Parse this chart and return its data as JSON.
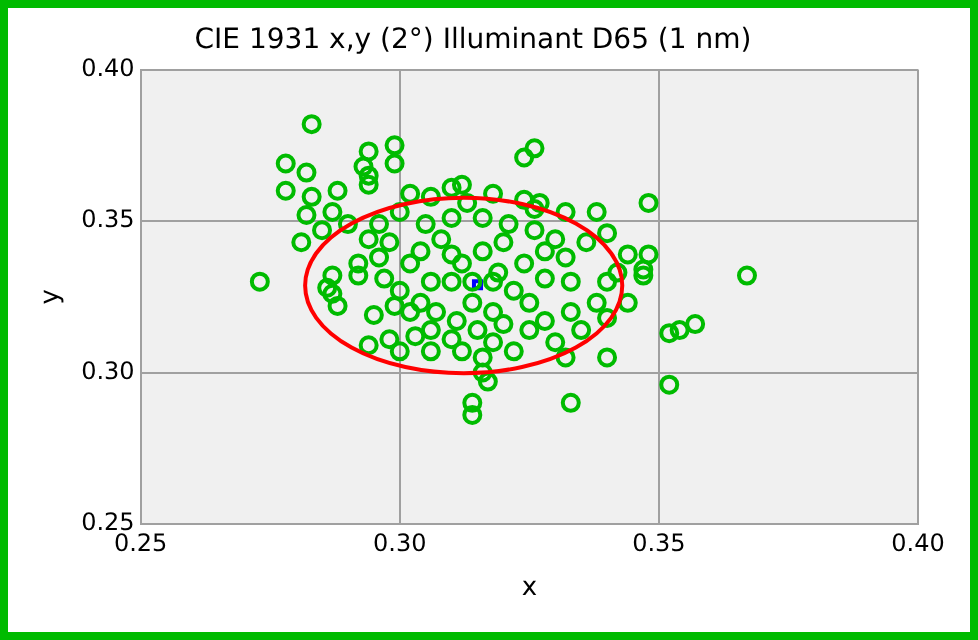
{
  "chart_data": {
    "type": "scatter",
    "title": "CIE 1931 x,y (2°) Illuminant D65 (1 nm)",
    "xlabel": "x",
    "ylabel": "y",
    "xlim": [
      0.25,
      0.4
    ],
    "ylim": [
      0.25,
      0.4
    ],
    "xticks": [
      {
        "value": 0.25,
        "label": "0.25"
      },
      {
        "value": 0.3,
        "label": "0.30"
      },
      {
        "value": 0.35,
        "label": "0.35"
      },
      {
        "value": 0.4,
        "label": "0.40"
      }
    ],
    "yticks": [
      {
        "value": 0.25,
        "label": "0.25"
      },
      {
        "value": 0.3,
        "label": "0.30"
      },
      {
        "value": 0.35,
        "label": "0.35"
      },
      {
        "value": 0.4,
        "label": "0.40"
      }
    ],
    "grid": true,
    "legend": false,
    "marker": "circle",
    "series": [
      {
        "type": "scatter",
        "color": "#00bb00",
        "x": [
          0.273,
          0.283,
          0.278,
          0.278,
          0.282,
          0.283,
          0.282,
          0.285,
          0.288,
          0.287,
          0.29,
          0.294,
          0.293,
          0.294,
          0.294,
          0.299,
          0.299,
          0.302,
          0.326,
          0.324,
          0.327,
          0.326,
          0.348,
          0.348,
          0.347,
          0.347,
          0.367,
          0.352,
          0.354,
          0.357,
          0.352,
          0.333,
          0.314,
          0.314,
          0.316,
          0.316,
          0.317,
          0.281,
          0.287,
          0.286,
          0.287,
          0.288,
          0.292,
          0.292,
          0.295,
          0.294,
          0.298,
          0.3,
          0.306,
          0.31,
          0.303,
          0.299,
          0.297,
          0.312,
          0.316,
          0.31,
          0.319,
          0.314,
          0.318,
          0.308,
          0.304,
          0.306,
          0.307,
          0.324,
          0.322,
          0.325,
          0.32,
          0.315,
          0.311,
          0.302,
          0.3,
          0.305,
          0.31,
          0.316,
          0.321,
          0.326,
          0.33,
          0.332,
          0.328,
          0.333,
          0.338,
          0.34,
          0.335,
          0.33,
          0.332,
          0.34,
          0.344,
          0.342,
          0.336,
          0.34,
          0.338,
          0.332,
          0.324,
          0.318,
          0.312,
          0.31,
          0.306,
          0.3,
          0.296,
          0.294,
          0.298,
          0.296,
          0.313,
          0.32,
          0.325,
          0.322,
          0.318,
          0.312,
          0.306,
          0.302,
          0.304,
          0.314,
          0.31,
          0.318,
          0.328,
          0.333,
          0.328,
          0.34,
          0.344
        ],
        "values": [
          0.33,
          0.382,
          0.369,
          0.36,
          0.366,
          0.358,
          0.352,
          0.347,
          0.36,
          0.353,
          0.349,
          0.373,
          0.368,
          0.365,
          0.362,
          0.375,
          0.369,
          0.359,
          0.374,
          0.371,
          0.356,
          0.354,
          0.356,
          0.339,
          0.334,
          0.332,
          0.332,
          0.313,
          0.314,
          0.316,
          0.296,
          0.29,
          0.29,
          0.286,
          0.305,
          0.3,
          0.297,
          0.343,
          0.332,
          0.328,
          0.326,
          0.322,
          0.336,
          0.332,
          0.319,
          0.309,
          0.311,
          0.307,
          0.307,
          0.311,
          0.312,
          0.322,
          0.331,
          0.336,
          0.34,
          0.33,
          0.333,
          0.323,
          0.32,
          0.344,
          0.34,
          0.33,
          0.32,
          0.336,
          0.327,
          0.323,
          0.316,
          0.314,
          0.317,
          0.336,
          0.327,
          0.349,
          0.351,
          0.351,
          0.349,
          0.347,
          0.344,
          0.338,
          0.331,
          0.33,
          0.323,
          0.318,
          0.314,
          0.31,
          0.305,
          0.305,
          0.323,
          0.333,
          0.343,
          0.346,
          0.353,
          0.353,
          0.357,
          0.359,
          0.362,
          0.361,
          0.358,
          0.353,
          0.349,
          0.344,
          0.343,
          0.338,
          0.356,
          0.343,
          0.314,
          0.307,
          0.31,
          0.307,
          0.314,
          0.32,
          0.323,
          0.33,
          0.339,
          0.33,
          0.34,
          0.32,
          0.317,
          0.33,
          0.339
        ]
      },
      {
        "type": "scatter",
        "color": "#0000ff",
        "marker": "square",
        "x": [
          0.315
        ],
        "values": [
          0.329
        ]
      }
    ]
  }
}
